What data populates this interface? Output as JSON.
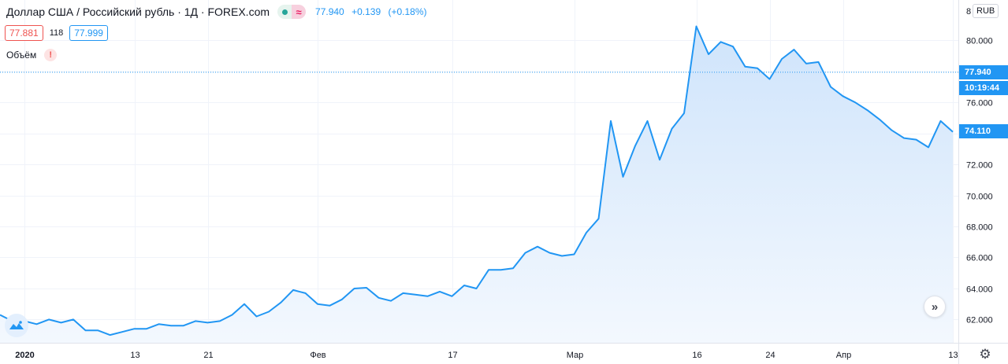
{
  "legend": {
    "symbol_title": "Доллар США / Российский рубль · 1Д · FOREX.com",
    "market_status_icon": "market-open-dot-icon",
    "wave_icon": "approx-wave-icon",
    "wave_glyph": "≈",
    "last_price": "77.940",
    "change": "+0.139",
    "change_percent": "(+0.18%)",
    "bid": "77.881",
    "spread": "118",
    "ask": "77.999",
    "volume_label": "Объём",
    "alert_glyph": "!"
  },
  "price_scale": {
    "currency": "RUB",
    "top_partial_label": "8",
    "last_price_label": "77.940",
    "countdown_label": "10:19:44",
    "crosshair_label": "74.110"
  },
  "controls": {
    "scroll_glyph": "»",
    "settings_glyph": "⚙"
  },
  "colors": {
    "line": "#2196f3",
    "fill_top": "#cfe4fb",
    "fill_bottom": "#f3f8fe",
    "grid": "#f0f3fa",
    "bid": "#ef5350",
    "ask": "#2196f3"
  },
  "chart_data": {
    "type": "area",
    "title": "Доллар США / Российский рубль · 1Д · FOREX.com",
    "xlabel": "",
    "ylabel": "",
    "ylim": [
      60.5,
      82.6
    ],
    "y_ticks": [
      62,
      64,
      66,
      68,
      70,
      72,
      74,
      76,
      78,
      80
    ],
    "grid": true,
    "current_price_line": 77.94,
    "x_tick_labels": [
      {
        "label": "2020",
        "index": 2
      },
      {
        "label": "13",
        "index": 11
      },
      {
        "label": "21",
        "index": 17
      },
      {
        "label": "Фев",
        "index": 26
      },
      {
        "label": "17",
        "index": 37
      },
      {
        "label": "Мар",
        "index": 47
      },
      {
        "label": "16",
        "index": 57
      },
      {
        "label": "24",
        "index": 63
      },
      {
        "label": "Апр",
        "index": 69
      },
      {
        "label": "13",
        "index": 78
      }
    ],
    "series": [
      {
        "values": [
          62.3,
          61.9,
          61.9,
          61.7,
          62.0,
          61.8,
          62.0,
          61.3,
          61.3,
          61.0,
          61.2,
          61.4,
          61.4,
          61.7,
          61.6,
          61.6,
          61.9,
          61.8,
          61.9,
          62.3,
          63.0,
          62.2,
          62.5,
          63.1,
          63.9,
          63.7,
          63.0,
          62.9,
          63.3,
          64.0,
          64.05,
          63.4,
          63.2,
          63.7,
          63.6,
          63.5,
          63.8,
          63.5,
          64.2,
          64.0,
          65.2,
          65.2,
          65.3,
          66.3,
          66.7,
          66.3,
          66.1,
          66.2,
          67.6,
          68.5,
          74.8,
          71.2,
          73.2,
          74.8,
          72.3,
          74.3,
          75.3,
          80.9,
          79.1,
          79.9,
          79.6,
          78.3,
          78.2,
          77.5,
          78.8,
          79.4,
          78.5,
          78.6,
          77.0,
          76.4,
          76.0,
          75.5,
          74.9,
          74.2,
          73.7,
          73.6,
          73.1,
          74.8,
          74.1
        ]
      }
    ]
  }
}
